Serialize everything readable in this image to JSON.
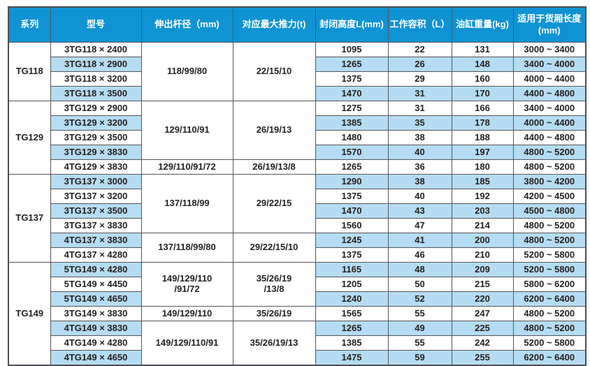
{
  "header": {
    "columns": [
      "系列",
      "型号",
      "伸出杆径（mm)",
      "对应最大推力(t)",
      "封闭高度L(mm)",
      "工作容积（L）",
      "油缸重量(kg)",
      "适用于货厢长度\n(mm)"
    ]
  },
  "colors": {
    "header_bg": "#0f93d3",
    "header_text": "#ffffff",
    "row_bg": "#ffffff",
    "row_alt_bg": "#b5dcf2",
    "border": "#55565a",
    "body_text": "#231f20"
  },
  "table": {
    "groups": [
      {
        "series": "TG118",
        "merges": [
          {
            "start": 0,
            "span": 4,
            "rod": "118/99/80",
            "thrust": "22/15/10"
          }
        ],
        "rows": [
          {
            "model": "3TG118 × 2400",
            "closed_height": "1095",
            "volume": "22",
            "weight": "131",
            "box_length": "3000 ~ 3400"
          },
          {
            "model": "3TG118 × 2900",
            "closed_height": "1265",
            "volume": "26",
            "weight": "148",
            "box_length": "3400 ~ 4000"
          },
          {
            "model": "3TG118 × 3200",
            "closed_height": "1375",
            "volume": "29",
            "weight": "160",
            "box_length": "4000 ~ 4400"
          },
          {
            "model": "3TG118 × 3500",
            "closed_height": "1470",
            "volume": "31",
            "weight": "170",
            "box_length": "4400 ~ 4800"
          }
        ]
      },
      {
        "series": "TG129",
        "merges": [
          {
            "start": 0,
            "span": 4,
            "rod": "129/110/91",
            "thrust": "26/19/13"
          },
          {
            "start": 4,
            "span": 1,
            "rod": "129/110/91/72",
            "thrust": "26/19/13/8"
          }
        ],
        "rows": [
          {
            "model": "3TG129 × 2900",
            "closed_height": "1275",
            "volume": "31",
            "weight": "166",
            "box_length": "3400 ~ 4000"
          },
          {
            "model": "3TG129 × 3200",
            "closed_height": "1385",
            "volume": "35",
            "weight": "178",
            "box_length": "4000 ~ 4400"
          },
          {
            "model": "3TG129 × 3500",
            "closed_height": "1480",
            "volume": "38",
            "weight": "188",
            "box_length": "4400 ~ 4800"
          },
          {
            "model": "3TG129 × 3830",
            "closed_height": "1570",
            "volume": "40",
            "weight": "197",
            "box_length": "4800 ~ 5200"
          },
          {
            "model": "4TG129 × 3830",
            "closed_height": "1265",
            "volume": "36",
            "weight": "180",
            "box_length": "4800 ~ 5200"
          }
        ]
      },
      {
        "series": "TG137",
        "merges": [
          {
            "start": 0,
            "span": 4,
            "rod": "137/118/99",
            "thrust": "29/22/15"
          },
          {
            "start": 4,
            "span": 2,
            "rod": "137/118/99/80",
            "thrust": "29/22/15/10"
          }
        ],
        "rows": [
          {
            "model": "3TG137 × 3000",
            "closed_height": "1290",
            "volume": "38",
            "weight": "185",
            "box_length": "3800 ~ 4200"
          },
          {
            "model": "3TG137 × 3200",
            "closed_height": "1375",
            "volume": "40",
            "weight": "192",
            "box_length": "4200 ~ 4500"
          },
          {
            "model": "3TG137 × 3500",
            "closed_height": "1470",
            "volume": "43",
            "weight": "203",
            "box_length": "4500 ~ 4800"
          },
          {
            "model": "3TG137 × 3830",
            "closed_height": "1560",
            "volume": "47",
            "weight": "214",
            "box_length": "4800 ~ 5200"
          },
          {
            "model": "4TG137 × 3830",
            "closed_height": "1245",
            "volume": "41",
            "weight": "200",
            "box_length": "4800 ~ 5200"
          },
          {
            "model": "4TG137 × 4280",
            "closed_height": "1375",
            "volume": "46",
            "weight": "210",
            "box_length": "5200 ~ 5800"
          }
        ]
      },
      {
        "series": "TG149",
        "merges": [
          {
            "start": 0,
            "span": 3,
            "rod": "149/129/110\n/91/72",
            "thrust": "35/26/19\n/13/8"
          },
          {
            "start": 3,
            "span": 1,
            "rod": "149/129/110",
            "thrust": "35/26/19"
          },
          {
            "start": 4,
            "span": 3,
            "rod": "149/129/110/91",
            "thrust": "35/26/19/13"
          }
        ],
        "rows": [
          {
            "model": "5TG149 × 4280",
            "closed_height": "1165",
            "volume": "48",
            "weight": "209",
            "box_length": "5200 ~ 5800"
          },
          {
            "model": "5TG149 × 4450",
            "closed_height": "1205",
            "volume": "50",
            "weight": "215",
            "box_length": "5800 ~ 6200"
          },
          {
            "model": "5TG149 × 4650",
            "closed_height": "1240",
            "volume": "52",
            "weight": "220",
            "box_length": "6200 ~ 6400"
          },
          {
            "model": "3TG149 × 3830",
            "closed_height": "1565",
            "volume": "55",
            "weight": "247",
            "box_length": "4800 ~ 5200"
          },
          {
            "model": "4TG149 × 3830",
            "closed_height": "1265",
            "volume": "49",
            "weight": "225",
            "box_length": "4800 ~ 5200"
          },
          {
            "model": "4TG149 × 4280",
            "closed_height": "1385",
            "volume": "55",
            "weight": "242",
            "box_length": "5200 ~ 5800"
          },
          {
            "model": "4TG149 × 4650",
            "closed_height": "1475",
            "volume": "59",
            "weight": "255",
            "box_length": "6200 ~ 6400"
          }
        ]
      }
    ]
  }
}
